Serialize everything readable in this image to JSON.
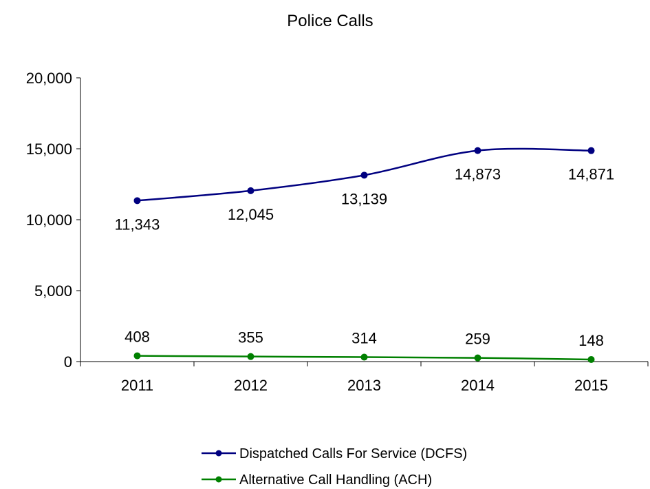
{
  "chart_data": {
    "type": "line",
    "title": "Police Calls",
    "xlabel": "",
    "ylabel": "",
    "categories": [
      "2011",
      "2012",
      "2013",
      "2014",
      "2015"
    ],
    "ylim": [
      0,
      20000
    ],
    "yticks": [
      0,
      5000,
      10000,
      15000,
      20000
    ],
    "ytick_labels": [
      "0",
      "5,000",
      "10,000",
      "15,000",
      "20,000"
    ],
    "grid": false,
    "smooth": true,
    "legend_position": "bottom",
    "series": [
      {
        "name": "Dispatched Calls For Service (DCFS)",
        "color": "#000080",
        "values": [
          11343,
          12045,
          13139,
          14873,
          14871
        ],
        "labels": [
          "11,343",
          "12,045",
          "13,139",
          "14,873",
          "14,871"
        ],
        "label_position": "below"
      },
      {
        "name": "Alternative Call Handling (ACH)",
        "color": "#008000",
        "values": [
          408,
          355,
          314,
          259,
          148
        ],
        "labels": [
          "408",
          "355",
          "314",
          "259",
          "148"
        ],
        "label_position": "above"
      }
    ]
  }
}
